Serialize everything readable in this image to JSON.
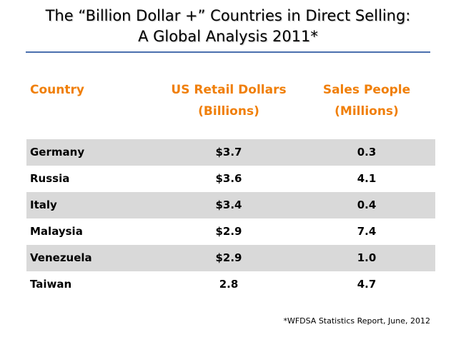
{
  "title_line1": "The “Billion Dollar +” Countries in Direct Selling:",
  "title_line2": "A Global Analysis 2011*",
  "accent_color": "#f07f09",
  "rule_color": "#4a6fae",
  "row_shade_color": "#d9d9d9",
  "source_note": "*WFDSA Statistics Report,  June, 2012",
  "chart_data": {
    "type": "table",
    "columns": [
      {
        "key": "country",
        "label_line1": "Country",
        "label_line2": ""
      },
      {
        "key": "retail",
        "label_line1": "US Retail Dollars",
        "label_line2": "(Billions)"
      },
      {
        "key": "people",
        "label_line1": "Sales People",
        "label_line2": "(Millions)"
      }
    ],
    "rows": [
      {
        "country": "Germany",
        "retail": "$3.7",
        "people": "0.3",
        "shaded": true
      },
      {
        "country": "Russia",
        "retail": "$3.6",
        "people": "4.1",
        "shaded": false
      },
      {
        "country": "Italy",
        "retail": "$3.4",
        "people": "0.4",
        "shaded": true
      },
      {
        "country": "Malaysia",
        "retail": "$2.9",
        "people": "7.4",
        "shaded": false
      },
      {
        "country": "Venezuela",
        "retail": "$2.9",
        "people": "1.0",
        "shaded": true
      },
      {
        "country": "Taiwan",
        "retail": "2.8",
        "people": "4.7",
        "shaded": false
      }
    ]
  }
}
